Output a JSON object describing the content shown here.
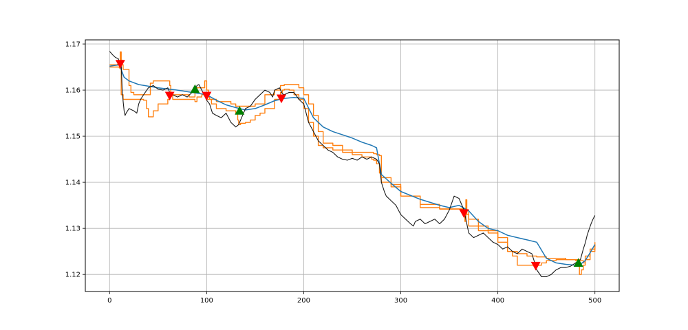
{
  "chart_data": {
    "type": "line",
    "title": "",
    "xlabel": "",
    "ylabel": "",
    "xlim": [
      -25,
      525
    ],
    "ylim": [
      1.1163,
      1.1709
    ],
    "grid": true,
    "x_ticks": [
      0,
      100,
      200,
      300,
      400,
      500
    ],
    "x_tick_labels": [
      "0",
      "100",
      "200",
      "300",
      "400",
      "500"
    ],
    "y_ticks": [
      1.12,
      1.13,
      1.14,
      1.15,
      1.16,
      1.17
    ],
    "y_tick_labels": [
      "1.12",
      "1.13",
      "1.14",
      "1.15",
      "1.16",
      "1.17"
    ],
    "colors": {
      "price": "#1a1a1a",
      "average": "#1f77b4",
      "channel": "#ff7f0e",
      "buy": "#008000",
      "sell": "#ff0000"
    },
    "series": [
      {
        "key": "price",
        "x": [
          0,
          3,
          6,
          9,
          10,
          12,
          13,
          14,
          15,
          16,
          17,
          20,
          25,
          28,
          30,
          32,
          35,
          40,
          45,
          50,
          55,
          60,
          62,
          65,
          70,
          75,
          80,
          85,
          88,
          90,
          92,
          95,
          100,
          103,
          106,
          110,
          115,
          120,
          125,
          130,
          133,
          135,
          140,
          145,
          150,
          155,
          160,
          165,
          168,
          170,
          175,
          178,
          180,
          185,
          190,
          195,
          200,
          205,
          210,
          215,
          220,
          225,
          230,
          235,
          240,
          245,
          250,
          255,
          260,
          265,
          270,
          275,
          278,
          280,
          283,
          285,
          290,
          295,
          300,
          305,
          310,
          313,
          315,
          320,
          325,
          330,
          335,
          340,
          345,
          350,
          355,
          360,
          365,
          368,
          370,
          375,
          380,
          385,
          390,
          395,
          400,
          405,
          410,
          415,
          420,
          425,
          430,
          435,
          438,
          440,
          445,
          450,
          455,
          460,
          465,
          470,
          475,
          480,
          485,
          488,
          490,
          492,
          494,
          496,
          498,
          500
        ],
        "y": [
          1.1684,
          1.1677,
          1.1671,
          1.1668,
          1.166,
          1.1655,
          1.16,
          1.1575,
          1.1555,
          1.1545,
          1.155,
          1.156,
          1.1555,
          1.155,
          1.157,
          1.158,
          1.159,
          1.1605,
          1.161,
          1.1602,
          1.16,
          1.1605,
          1.1595,
          1.159,
          1.1585,
          1.159,
          1.1585,
          1.1595,
          1.16,
          1.161,
          1.1612,
          1.16,
          1.1578,
          1.157,
          1.155,
          1.1545,
          1.154,
          1.155,
          1.153,
          1.152,
          1.1525,
          1.1535,
          1.156,
          1.1565,
          1.158,
          1.159,
          1.16,
          1.1595,
          1.1585,
          1.16,
          1.1605,
          1.1592,
          1.159,
          1.1595,
          1.1595,
          1.158,
          1.157,
          1.153,
          1.151,
          1.149,
          1.148,
          1.147,
          1.1465,
          1.1455,
          1.145,
          1.1448,
          1.1452,
          1.1448,
          1.1455,
          1.145,
          1.1455,
          1.145,
          1.144,
          1.14,
          1.138,
          1.137,
          1.136,
          1.135,
          1.133,
          1.132,
          1.131,
          1.1305,
          1.1315,
          1.132,
          1.131,
          1.1315,
          1.132,
          1.131,
          1.132,
          1.134,
          1.137,
          1.1365,
          1.134,
          1.131,
          1.129,
          1.128,
          1.1285,
          1.129,
          1.128,
          1.127,
          1.1265,
          1.1255,
          1.126,
          1.125,
          1.1245,
          1.1255,
          1.125,
          1.1245,
          1.1225,
          1.121,
          1.1195,
          1.1195,
          1.12,
          1.121,
          1.1215,
          1.1215,
          1.1218,
          1.1225,
          1.1232,
          1.1255,
          1.1268,
          1.1285,
          1.1298,
          1.131,
          1.132,
          1.1328
        ]
      },
      {
        "key": "average",
        "x": [
          0,
          10,
          15,
          20,
          30,
          50,
          70,
          100,
          110,
          120,
          130,
          140,
          150,
          160,
          170,
          180,
          190,
          200,
          210,
          220,
          230,
          240,
          250,
          260,
          270,
          275,
          280,
          290,
          300,
          320,
          340,
          350,
          360,
          370,
          380,
          390,
          400,
          410,
          420,
          430,
          440,
          450,
          460,
          470,
          480,
          485,
          490,
          495,
          500
        ],
        "y": [
          1.1652,
          1.1655,
          1.1628,
          1.162,
          1.1612,
          1.1605,
          1.16,
          1.159,
          1.1578,
          1.1568,
          1.1562,
          1.1557,
          1.156,
          1.1568,
          1.1577,
          1.1582,
          1.1584,
          1.1582,
          1.154,
          1.152,
          1.151,
          1.1503,
          1.1496,
          1.1487,
          1.148,
          1.1475,
          1.1417,
          1.1398,
          1.138,
          1.1363,
          1.135,
          1.1345,
          1.135,
          1.1338,
          1.1315,
          1.13,
          1.1295,
          1.1285,
          1.128,
          1.1275,
          1.127,
          1.1235,
          1.1225,
          1.1222,
          1.122,
          1.1222,
          1.123,
          1.1247,
          1.1265
        ]
      },
      {
        "key": "channel-upper",
        "x": [
          0,
          8,
          10,
          11,
          12,
          13,
          14,
          20,
          22,
          25,
          40,
          42,
          45,
          50,
          62,
          63,
          65,
          70,
          80,
          82,
          85,
          88,
          90,
          95,
          98,
          100,
          102,
          103,
          110,
          120,
          125,
          130,
          150,
          160,
          170,
          175,
          176,
          180,
          183,
          190,
          195,
          200,
          205,
          210,
          215,
          220,
          230,
          240,
          250,
          260,
          270,
          272,
          275,
          278,
          280,
          290,
          300,
          320,
          340,
          345,
          350,
          360,
          365,
          368,
          370,
          380,
          390,
          400,
          410,
          420,
          430,
          440,
          450,
          460,
          470,
          480,
          485,
          488,
          490,
          495,
          500
        ],
        "y": [
          1.1655,
          1.1656,
          1.1664,
          1.1683,
          1.1665,
          1.1655,
          1.1645,
          1.161,
          1.1595,
          1.159,
          1.159,
          1.1615,
          1.162,
          1.162,
          1.161,
          1.159,
          1.159,
          1.159,
          1.159,
          1.1585,
          1.1585,
          1.16,
          1.1605,
          1.1605,
          1.162,
          1.16,
          1.1585,
          1.158,
          1.1575,
          1.1575,
          1.157,
          1.1565,
          1.157,
          1.159,
          1.16,
          1.16,
          1.161,
          1.1612,
          1.1612,
          1.1612,
          1.1605,
          1.159,
          1.157,
          1.1545,
          1.151,
          1.1485,
          1.148,
          1.147,
          1.1465,
          1.1465,
          1.1465,
          1.1462,
          1.146,
          1.1458,
          1.141,
          1.1395,
          1.137,
          1.1352,
          1.1342,
          1.1342,
          1.1342,
          1.1342,
          1.1342,
          1.133,
          1.1305,
          1.1295,
          1.129,
          1.127,
          1.125,
          1.1245,
          1.124,
          1.1238,
          1.1235,
          1.1235,
          1.1232,
          1.1232,
          1.123,
          1.1225,
          1.1232,
          1.125,
          1.127
        ]
      },
      {
        "key": "channel-lower",
        "x": [
          0,
          8,
          10,
          12,
          14,
          20,
          30,
          35,
          38,
          40,
          45,
          50,
          60,
          62,
          65,
          70,
          80,
          88,
          90,
          95,
          100,
          105,
          110,
          120,
          130,
          132,
          133,
          135,
          140,
          145,
          150,
          155,
          160,
          170,
          175,
          176,
          178,
          180,
          185,
          190,
          195,
          200,
          205,
          210,
          215,
          220,
          230,
          240,
          250,
          260,
          270,
          272,
          275,
          278,
          280,
          290,
          300,
          320,
          340,
          345,
          350,
          360,
          365,
          366,
          367,
          368,
          370,
          380,
          390,
          400,
          410,
          415,
          420,
          430,
          440,
          445,
          450,
          460,
          470,
          480,
          482,
          484,
          486,
          488,
          490,
          495,
          500
        ],
        "y": [
          1.165,
          1.165,
          1.1648,
          1.159,
          1.158,
          1.158,
          1.158,
          1.1578,
          1.156,
          1.1542,
          1.1555,
          1.157,
          1.158,
          1.1588,
          1.158,
          1.158,
          1.158,
          1.1575,
          1.1585,
          1.159,
          1.158,
          1.157,
          1.156,
          1.1555,
          1.155,
          1.1535,
          1.1525,
          1.1528,
          1.153,
          1.1535,
          1.1545,
          1.155,
          1.156,
          1.158,
          1.1585,
          1.1595,
          1.16,
          1.1602,
          1.16,
          1.159,
          1.158,
          1.156,
          1.153,
          1.15,
          1.148,
          1.1475,
          1.147,
          1.1465,
          1.146,
          1.1455,
          1.145,
          1.1448,
          1.144,
          1.142,
          1.14,
          1.139,
          1.137,
          1.1345,
          1.1342,
          1.1342,
          1.1342,
          1.1342,
          1.133,
          1.1315,
          1.1362,
          1.134,
          1.132,
          1.1305,
          1.1295,
          1.128,
          1.125,
          1.124,
          1.122,
          1.122,
          1.122,
          1.1225,
          1.123,
          1.1232,
          1.1232,
          1.123,
          1.122,
          1.12,
          1.121,
          1.122,
          1.124,
          1.1255,
          1.1265
        ]
      }
    ],
    "markers": [
      {
        "kind": "sell",
        "x": 11,
        "y": 1.1657
      },
      {
        "kind": "sell",
        "x": 62,
        "y": 1.1588
      },
      {
        "kind": "buy",
        "x": 88,
        "y": 1.1602
      },
      {
        "kind": "sell",
        "x": 100,
        "y": 1.1588
      },
      {
        "kind": "buy",
        "x": 134,
        "y": 1.1555
      },
      {
        "kind": "sell",
        "x": 177,
        "y": 1.1582
      },
      {
        "kind": "sell",
        "x": 365,
        "y": 1.1333
      },
      {
        "kind": "sell",
        "x": 439,
        "y": 1.1219
      },
      {
        "kind": "buy",
        "x": 483,
        "y": 1.1225
      }
    ]
  }
}
